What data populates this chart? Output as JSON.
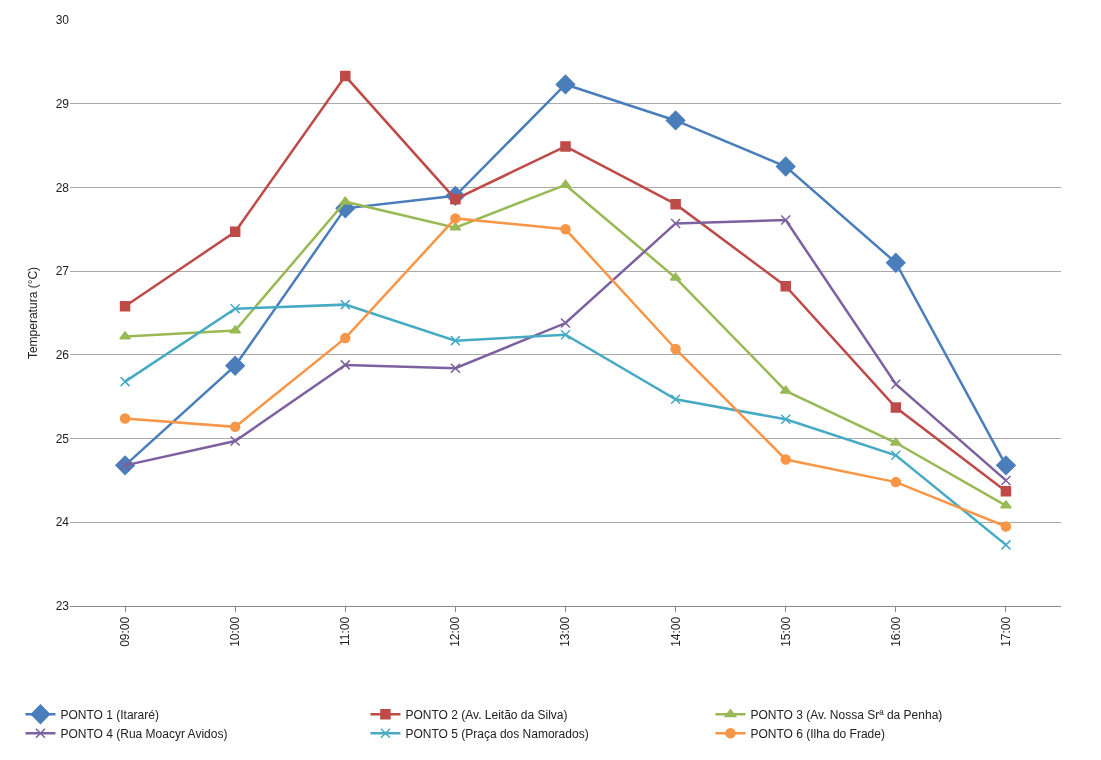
{
  "chart_data": {
    "type": "line",
    "ylabel": "Temperatura (°C)",
    "categories": [
      "09:00",
      "10:00",
      "11:00",
      "12:00",
      "13:00",
      "14:00",
      "15:00",
      "16:00",
      "17:00"
    ],
    "series": [
      {
        "name": "PONTO 1 (Itararé)",
        "color": "#4a7ebb",
        "marker": "diamond",
        "values": [
          24.68,
          25.87,
          27.75,
          27.9,
          29.23,
          28.8,
          28.25,
          27.1,
          24.68
        ]
      },
      {
        "name": "PONTO 2 (Av. Leitão da Silva)",
        "color": "#be4b48",
        "marker": "square",
        "values": [
          26.58,
          27.47,
          29.33,
          27.86,
          28.49,
          27.8,
          26.82,
          25.37,
          24.37
        ]
      },
      {
        "name": "PONTO 3 (Av. Nossa Srª da Penha)",
        "color": "#98b954",
        "marker": "triangle",
        "values": [
          26.22,
          26.29,
          27.83,
          27.52,
          28.03,
          26.92,
          25.57,
          24.95,
          24.2
        ]
      },
      {
        "name": "PONTO 4 (Rua Moacyr Avidos)",
        "color": "#7d60a0",
        "marker": "cross",
        "values": [
          24.68,
          24.97,
          25.88,
          25.84,
          26.38,
          27.57,
          27.61,
          25.65,
          24.5
        ]
      },
      {
        "name": "PONTO 5 (Praça dos Namorados)",
        "color": "#46aac5",
        "marker": "cross",
        "values": [
          25.68,
          26.55,
          26.6,
          26.17,
          26.24,
          25.47,
          25.23,
          24.8,
          23.73
        ]
      },
      {
        "name": "PONTO 6 (Ilha do Frade)",
        "color": "#f79646",
        "marker": "circle",
        "values": [
          25.24,
          25.14,
          26.2,
          27.63,
          27.5,
          26.07,
          24.75,
          24.48,
          23.95
        ]
      }
    ],
    "ylim": [
      23,
      30
    ],
    "yticks": [
      23,
      24,
      25,
      26,
      27,
      28,
      29,
      30
    ],
    "grid": "y",
    "legend": "bottom",
    "line_style": "solid"
  }
}
